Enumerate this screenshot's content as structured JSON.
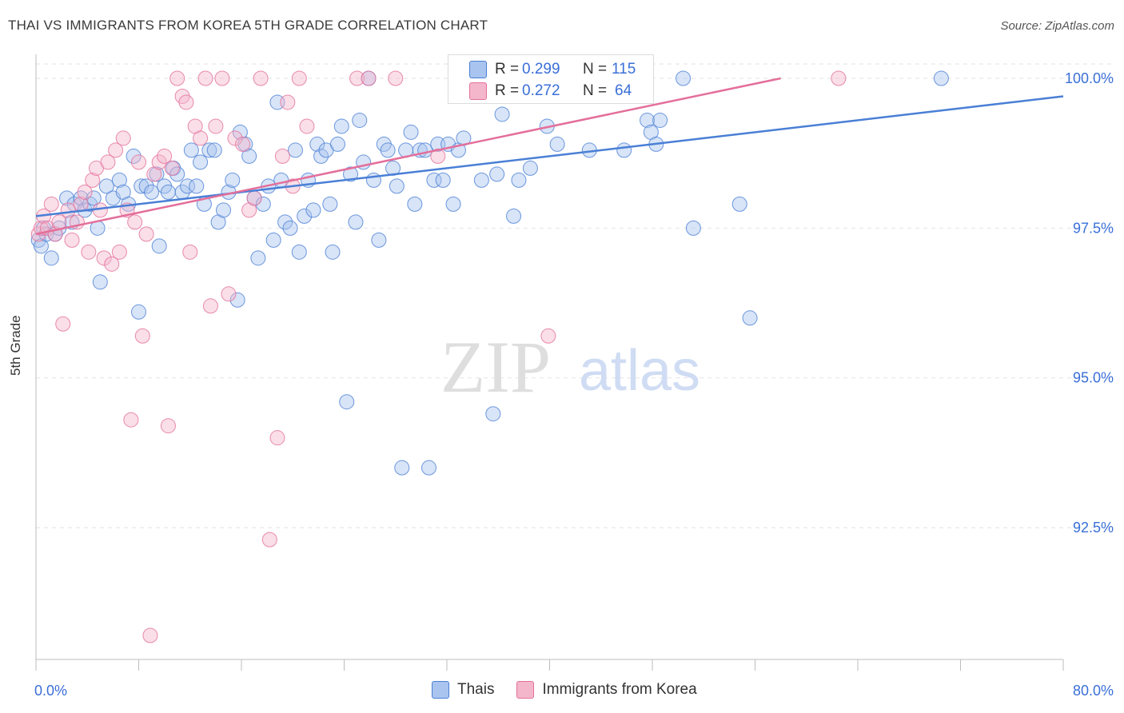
{
  "title": "THAI VS IMMIGRANTS FROM KOREA 5TH GRADE CORRELATION CHART",
  "source": "Source: ZipAtlas.com",
  "watermark": {
    "zip": "ZIP",
    "atlas": "atlas"
  },
  "colors": {
    "blue": "#4a7fd6",
    "blue_fill": "#a9c4ee",
    "pink": "#e46f9a",
    "pink_fill": "#f4b6cb",
    "axis_text": "#3a6fd8"
  },
  "stats": {
    "r_label": "R =",
    "n_label": "N =",
    "series": [
      {
        "r": "0.299",
        "n": "115"
      },
      {
        "r": "0.272",
        "n": "64"
      }
    ]
  },
  "chart_data": {
    "type": "scatter",
    "title": "THAI VS IMMIGRANTS FROM KOREA 5TH GRADE CORRELATION CHART",
    "xlabel": "",
    "ylabel": "5th Grade",
    "xlim": [
      0,
      80
    ],
    "ylim": [
      90.3,
      100.4
    ],
    "x_tick_labels": [
      "0.0%",
      "80.0%"
    ],
    "y_ticks": [
      92.5,
      95.0,
      97.5,
      100.0
    ],
    "y_tick_labels": [
      "92.5%",
      "95.0%",
      "97.5%",
      "100.0%"
    ],
    "legend": "bottom-center",
    "grid": true,
    "series": [
      {
        "name": "Thais",
        "color": "#4a7fd6",
        "trend": [
          [
            0,
            97.7
          ],
          [
            80,
            99.7
          ]
        ],
        "points": [
          [
            0.2,
            97.3
          ],
          [
            0.4,
            97.2
          ],
          [
            0.6,
            97.5
          ],
          [
            0.8,
            97.4
          ],
          [
            1.2,
            97.0
          ],
          [
            1.5,
            97.4
          ],
          [
            1.8,
            97.5
          ],
          [
            2.4,
            98.0
          ],
          [
            2.8,
            97.6
          ],
          [
            3.0,
            97.9
          ],
          [
            3.5,
            98.0
          ],
          [
            3.8,
            97.8
          ],
          [
            4.2,
            97.9
          ],
          [
            4.5,
            98.0
          ],
          [
            4.8,
            97.5
          ],
          [
            5.0,
            96.6
          ],
          [
            5.5,
            98.2
          ],
          [
            6.0,
            98.0
          ],
          [
            6.5,
            98.3
          ],
          [
            6.8,
            98.1
          ],
          [
            7.2,
            97.9
          ],
          [
            7.6,
            98.7
          ],
          [
            8.0,
            96.1
          ],
          [
            8.2,
            98.2
          ],
          [
            8.6,
            98.2
          ],
          [
            9.0,
            98.1
          ],
          [
            9.4,
            98.4
          ],
          [
            9.6,
            97.2
          ],
          [
            10.0,
            98.2
          ],
          [
            10.3,
            98.1
          ],
          [
            10.7,
            98.5
          ],
          [
            11.0,
            98.4
          ],
          [
            11.4,
            98.1
          ],
          [
            11.8,
            98.2
          ],
          [
            12.1,
            98.8
          ],
          [
            12.5,
            98.2
          ],
          [
            12.8,
            98.6
          ],
          [
            13.1,
            97.9
          ],
          [
            13.5,
            98.8
          ],
          [
            13.9,
            98.8
          ],
          [
            14.2,
            97.6
          ],
          [
            14.6,
            97.8
          ],
          [
            15.0,
            98.1
          ],
          [
            15.3,
            98.3
          ],
          [
            15.7,
            96.3
          ],
          [
            15.9,
            99.1
          ],
          [
            16.3,
            98.9
          ],
          [
            16.6,
            98.7
          ],
          [
            17.0,
            98.0
          ],
          [
            17.3,
            97.0
          ],
          [
            17.7,
            97.9
          ],
          [
            18.1,
            98.2
          ],
          [
            18.5,
            97.3
          ],
          [
            18.8,
            99.6
          ],
          [
            19.1,
            98.3
          ],
          [
            19.4,
            97.6
          ],
          [
            19.8,
            97.5
          ],
          [
            20.2,
            98.8
          ],
          [
            20.5,
            97.1
          ],
          [
            20.9,
            97.7
          ],
          [
            21.2,
            98.3
          ],
          [
            21.6,
            97.8
          ],
          [
            21.9,
            98.9
          ],
          [
            22.2,
            98.7
          ],
          [
            22.6,
            98.8
          ],
          [
            22.9,
            97.9
          ],
          [
            23.1,
            97.1
          ],
          [
            23.5,
            98.9
          ],
          [
            23.8,
            99.2
          ],
          [
            24.2,
            94.6
          ],
          [
            24.5,
            98.4
          ],
          [
            24.9,
            97.6
          ],
          [
            25.2,
            99.3
          ],
          [
            25.5,
            98.6
          ],
          [
            25.9,
            100.0
          ],
          [
            26.3,
            98.3
          ],
          [
            26.7,
            97.3
          ],
          [
            27.1,
            98.9
          ],
          [
            27.4,
            98.8
          ],
          [
            27.8,
            98.5
          ],
          [
            28.1,
            98.2
          ],
          [
            28.5,
            93.5
          ],
          [
            28.8,
            98.8
          ],
          [
            29.2,
            99.1
          ],
          [
            29.5,
            97.9
          ],
          [
            29.9,
            98.8
          ],
          [
            30.3,
            98.8
          ],
          [
            30.6,
            93.5
          ],
          [
            31.0,
            98.3
          ],
          [
            31.3,
            98.9
          ],
          [
            31.7,
            98.3
          ],
          [
            32.1,
            98.9
          ],
          [
            32.5,
            97.9
          ],
          [
            32.9,
            98.8
          ],
          [
            33.3,
            99.0
          ],
          [
            34.2,
            99.7
          ],
          [
            34.7,
            98.3
          ],
          [
            35.6,
            94.4
          ],
          [
            35.9,
            98.4
          ],
          [
            36.3,
            99.4
          ],
          [
            37.2,
            97.7
          ],
          [
            37.6,
            98.3
          ],
          [
            38.5,
            98.5
          ],
          [
            39.8,
            99.2
          ],
          [
            40.6,
            98.9
          ],
          [
            43.1,
            98.8
          ],
          [
            45.8,
            98.8
          ],
          [
            47.6,
            99.3
          ],
          [
            47.9,
            99.1
          ],
          [
            48.3,
            98.9
          ],
          [
            48.6,
            99.3
          ],
          [
            50.4,
            100.0
          ],
          [
            51.2,
            97.5
          ],
          [
            54.8,
            97.9
          ],
          [
            55.6,
            96.0
          ],
          [
            70.5,
            100.0
          ]
        ]
      },
      {
        "name": "Immigrants from Korea",
        "color": "#e46f9a",
        "trend": [
          [
            0,
            97.4
          ],
          [
            58,
            100.0
          ]
        ],
        "points": [
          [
            0.2,
            97.4
          ],
          [
            0.4,
            97.5
          ],
          [
            0.6,
            97.7
          ],
          [
            0.9,
            97.5
          ],
          [
            1.2,
            97.9
          ],
          [
            1.5,
            97.4
          ],
          [
            1.8,
            97.6
          ],
          [
            2.1,
            95.9
          ],
          [
            2.5,
            97.8
          ],
          [
            2.8,
            97.3
          ],
          [
            3.2,
            97.6
          ],
          [
            3.5,
            97.9
          ],
          [
            3.8,
            98.1
          ],
          [
            4.1,
            97.1
          ],
          [
            4.4,
            98.3
          ],
          [
            4.7,
            98.5
          ],
          [
            5.0,
            97.8
          ],
          [
            5.3,
            97.0
          ],
          [
            5.6,
            98.6
          ],
          [
            5.9,
            96.9
          ],
          [
            6.2,
            98.8
          ],
          [
            6.5,
            97.1
          ],
          [
            6.8,
            99.0
          ],
          [
            7.1,
            97.8
          ],
          [
            7.4,
            94.3
          ],
          [
            7.7,
            97.6
          ],
          [
            8.0,
            98.6
          ],
          [
            8.3,
            95.7
          ],
          [
            8.6,
            97.4
          ],
          [
            8.9,
            90.7
          ],
          [
            9.2,
            98.4
          ],
          [
            9.6,
            98.6
          ],
          [
            10.0,
            98.7
          ],
          [
            10.3,
            94.2
          ],
          [
            10.6,
            98.5
          ],
          [
            11.0,
            100.0
          ],
          [
            11.4,
            99.7
          ],
          [
            11.7,
            99.6
          ],
          [
            12.0,
            97.1
          ],
          [
            12.4,
            99.2
          ],
          [
            12.8,
            99.0
          ],
          [
            13.2,
            100.0
          ],
          [
            13.6,
            96.2
          ],
          [
            14.0,
            99.2
          ],
          [
            14.5,
            100.0
          ],
          [
            15.0,
            96.4
          ],
          [
            15.5,
            99.0
          ],
          [
            16.1,
            98.9
          ],
          [
            16.6,
            97.8
          ],
          [
            17.0,
            98.0
          ],
          [
            17.5,
            100.0
          ],
          [
            18.2,
            92.3
          ],
          [
            18.8,
            94.0
          ],
          [
            19.2,
            98.7
          ],
          [
            19.6,
            99.6
          ],
          [
            20.0,
            98.2
          ],
          [
            20.5,
            100.0
          ],
          [
            21.1,
            99.2
          ],
          [
            25.0,
            100.0
          ],
          [
            25.9,
            100.0
          ],
          [
            28.0,
            100.0
          ],
          [
            31.3,
            98.7
          ],
          [
            39.9,
            95.7
          ],
          [
            62.5,
            100.0
          ]
        ]
      }
    ]
  }
}
